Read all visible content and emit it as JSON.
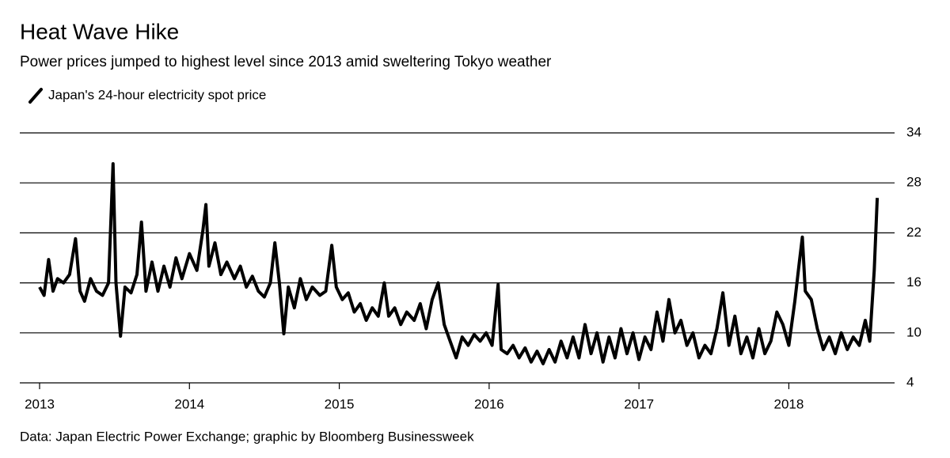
{
  "chart_data": {
    "type": "line",
    "title": "Heat Wave Hike",
    "subtitle": "Power prices jumped to highest level since 2013 amid sweltering Tokyo weather",
    "source": "Data: Japan Electric Power Exchange; graphic by Bloomberg Businessweek",
    "x": [
      2013.0,
      2013.03,
      2013.06,
      2013.09,
      2013.12,
      2013.16,
      2013.2,
      2013.24,
      2013.27,
      2013.3,
      2013.34,
      2013.38,
      2013.42,
      2013.46,
      2013.49,
      2013.51,
      2013.54,
      2013.57,
      2013.61,
      2013.65,
      2013.68,
      2013.71,
      2013.75,
      2013.79,
      2013.83,
      2013.87,
      2013.91,
      2013.95,
      2014.0,
      2014.05,
      2014.09,
      2014.11,
      2014.13,
      2014.17,
      2014.21,
      2014.25,
      2014.3,
      2014.34,
      2014.38,
      2014.42,
      2014.46,
      2014.5,
      2014.54,
      2014.57,
      2014.6,
      2014.63,
      2014.66,
      2014.7,
      2014.74,
      2014.78,
      2014.82,
      2014.87,
      2014.91,
      2014.95,
      2014.98,
      2015.02,
      2015.06,
      2015.1,
      2015.14,
      2015.18,
      2015.22,
      2015.26,
      2015.3,
      2015.33,
      2015.37,
      2015.41,
      2015.45,
      2015.5,
      2015.54,
      2015.58,
      2015.62,
      2015.66,
      2015.7,
      2015.74,
      2015.78,
      2015.82,
      2015.86,
      2015.9,
      2015.94,
      2015.98,
      2016.02,
      2016.06,
      2016.08,
      2016.12,
      2016.16,
      2016.2,
      2016.24,
      2016.28,
      2016.32,
      2016.36,
      2016.4,
      2016.44,
      2016.48,
      2016.52,
      2016.56,
      2016.6,
      2016.64,
      2016.68,
      2016.72,
      2016.76,
      2016.8,
      2016.84,
      2016.88,
      2016.92,
      2016.96,
      2017.0,
      2017.04,
      2017.08,
      2017.12,
      2017.16,
      2017.2,
      2017.24,
      2017.28,
      2017.32,
      2017.36,
      2017.4,
      2017.44,
      2017.48,
      2017.52,
      2017.56,
      2017.6,
      2017.64,
      2017.68,
      2017.72,
      2017.76,
      2017.8,
      2017.84,
      2017.88,
      2017.92,
      2017.96,
      2018.0,
      2018.04,
      2018.07,
      2018.09,
      2018.11,
      2018.15,
      2018.19,
      2018.23,
      2018.27,
      2018.31,
      2018.35,
      2018.39,
      2018.43,
      2018.47,
      2018.51,
      2018.54,
      2018.57,
      2018.59
    ],
    "series": [
      {
        "name": "Japan's 24-hour electricity spot price",
        "color": "#000000",
        "values": [
          15.5,
          14.5,
          18.8,
          15.0,
          16.5,
          16.0,
          17.0,
          21.3,
          15.0,
          13.8,
          16.5,
          15.0,
          14.5,
          16.0,
          30.3,
          16.0,
          9.6,
          15.5,
          14.8,
          17.0,
          23.3,
          15.0,
          18.5,
          15.0,
          18.0,
          15.5,
          19.0,
          16.5,
          19.5,
          17.5,
          22.3,
          25.4,
          18.0,
          20.8,
          17.0,
          18.5,
          16.5,
          18.0,
          15.5,
          16.8,
          15.0,
          14.3,
          16.0,
          20.8,
          16.0,
          9.9,
          15.5,
          13.0,
          16.5,
          14.0,
          15.5,
          14.5,
          15.0,
          20.5,
          15.5,
          14.0,
          14.8,
          12.5,
          13.5,
          11.5,
          13.0,
          12.0,
          16.0,
          12.0,
          13.0,
          11.0,
          12.5,
          11.5,
          13.5,
          10.5,
          14.0,
          16.0,
          11.0,
          9.0,
          7.0,
          9.5,
          8.5,
          9.8,
          9.0,
          10.0,
          8.5,
          15.8,
          8.0,
          7.5,
          8.5,
          7.0,
          8.2,
          6.5,
          7.8,
          6.3,
          8.0,
          6.5,
          9.0,
          7.0,
          9.5,
          7.0,
          11.0,
          7.5,
          10.0,
          6.5,
          9.5,
          7.0,
          10.5,
          7.5,
          10.0,
          6.8,
          9.5,
          8.0,
          12.5,
          9.0,
          14.0,
          10.0,
          11.5,
          8.5,
          10.0,
          7.0,
          8.5,
          7.5,
          10.5,
          14.8,
          8.5,
          12.0,
          7.5,
          9.5,
          7.0,
          10.5,
          7.5,
          9.0,
          12.5,
          11.0,
          8.5,
          13.8,
          18.5,
          21.5,
          15.0,
          14.0,
          10.5,
          8.0,
          9.5,
          7.5,
          10.0,
          8.0,
          9.5,
          8.5,
          11.5,
          9.0,
          17.5,
          26.2
        ]
      }
    ],
    "xlim": [
      2013,
      2018.6
    ],
    "xticks": [
      2013,
      2014,
      2015,
      2016,
      2017,
      2018
    ],
    "ylim": [
      4,
      34
    ],
    "yticks": [
      4,
      10,
      16,
      22,
      28,
      34
    ],
    "grid": true
  }
}
